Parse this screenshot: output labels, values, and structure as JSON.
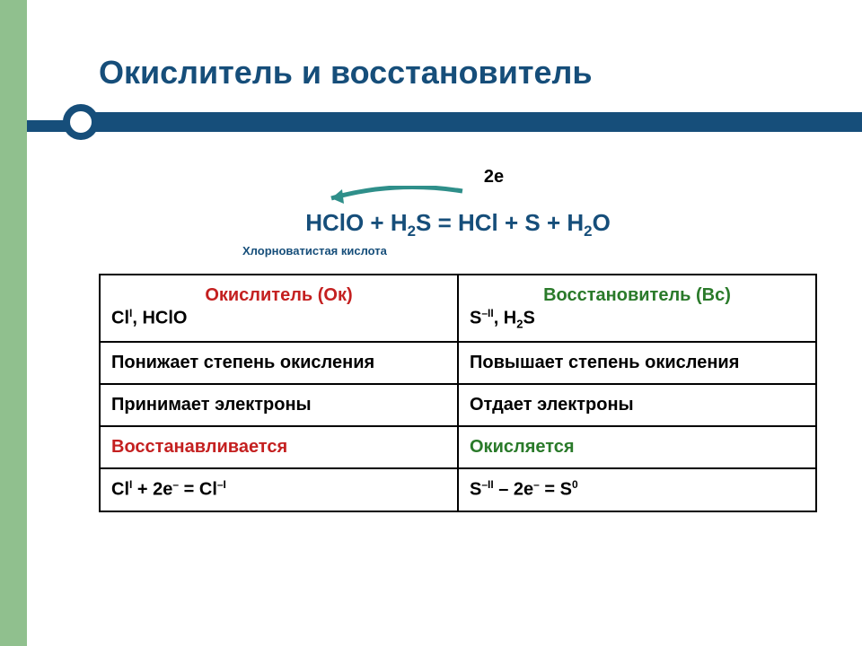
{
  "colors": {
    "leftbar": "#90c08e",
    "rule": "#164e7a",
    "title": "#164e7a",
    "equation": "#164e7a",
    "arrow": "#2f8f8a",
    "oxidizer_red": "#c42020",
    "reducer_green": "#2a7a2a",
    "sublabel": "#164e7a"
  },
  "title": "Окислитель и восстановитель",
  "arrow_label": "2е",
  "equation_html": "HClO + H<sub>2</sub>S = HCl + S + H<sub>2</sub>O",
  "sublabel": "Хлорноватистая кислота",
  "table": {
    "head": {
      "left_title": "Окислитель (Ок)",
      "left_items_html": "Cl<sup>I</sup>, HClO",
      "right_title": "Восстановитель (Вс)",
      "right_items_html": "S<sup>–II</sup>, H<sub>2</sub>S"
    },
    "rows": [
      {
        "left": "Понижает степень окисления",
        "right": "Повышает степень окисления",
        "color_left": "#000000",
        "color_right": "#000000"
      },
      {
        "left": "Принимает электроны",
        "right": "Отдает электроны",
        "color_left": "#000000",
        "color_right": "#000000"
      },
      {
        "left": "Восстанавливается",
        "right": "Окисляется",
        "color_left": "#c42020",
        "color_right": "#2a7a2a"
      }
    ],
    "half_reactions": {
      "left_html": "Cl<sup>I</sup> + 2e<sup>–</sup> = Cl<sup>–I</sup>",
      "right_html": "S<sup>–II</sup> – 2e<sup>–</sup> = S<sup>0</sup>"
    }
  }
}
